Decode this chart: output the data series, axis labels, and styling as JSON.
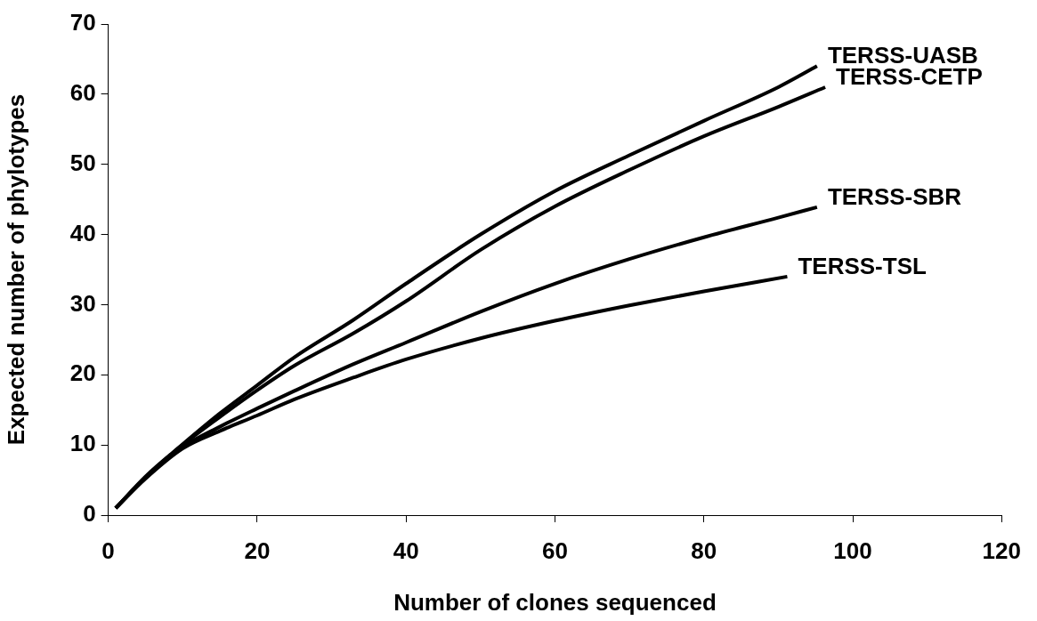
{
  "chart_data": {
    "type": "line",
    "xlabel": "Number of clones sequenced",
    "ylabel": "Expected number of phylotypes",
    "xlim": [
      0,
      120
    ],
    "xticks": [
      0,
      20,
      40,
      60,
      80,
      100,
      120
    ],
    "ylim": [
      0,
      70
    ],
    "yticks": [
      0,
      10,
      20,
      30,
      40,
      50,
      60,
      70
    ],
    "marker": "none",
    "line_style": "solid",
    "legend": false,
    "series": [
      {
        "name": "TERSS-UASB",
        "color": "#000000",
        "x": [
          1,
          5,
          10,
          15,
          20,
          25,
          32.9,
          40,
          50,
          60,
          70,
          80,
          90,
          95.2
        ],
        "values": [
          1,
          5.5,
          10.1,
          14.5,
          18.5,
          22.5,
          27.8,
          33.0,
          40.0,
          46.2,
          51.3,
          56.2,
          61.0,
          64.0
        ]
      },
      {
        "name": "TERSS-CETP",
        "color": "#000000",
        "x": [
          1,
          5,
          10,
          15,
          20,
          25,
          32.9,
          40,
          50,
          60,
          70,
          80,
          90,
          96.3
        ],
        "values": [
          1,
          5.4,
          10,
          14,
          17.8,
          21.3,
          25.9,
          30.5,
          37.8,
          44,
          49.2,
          54,
          58.2,
          61.0
        ]
      },
      {
        "name": "TERSS-SBR",
        "color": "#000000",
        "x": [
          1,
          5,
          10,
          15,
          20,
          25,
          32.9,
          40,
          50,
          60,
          70,
          80,
          90,
          95.2
        ],
        "values": [
          1,
          5.3,
          9.7,
          12.6,
          15.2,
          17.7,
          21.5,
          24.6,
          29,
          33.0,
          36.5,
          39.6,
          42.4,
          43.9
        ]
      },
      {
        "name": "TERSS-TSL",
        "color": "#000000",
        "x": [
          1,
          5,
          10,
          15,
          20,
          25,
          32.9,
          40,
          50,
          60,
          70,
          80,
          91.2
        ],
        "values": [
          1,
          5.2,
          9.5,
          12,
          14.2,
          16.5,
          19.6,
          22.2,
          25.2,
          27.7,
          29.9,
          31.9,
          34.0
        ]
      }
    ]
  }
}
